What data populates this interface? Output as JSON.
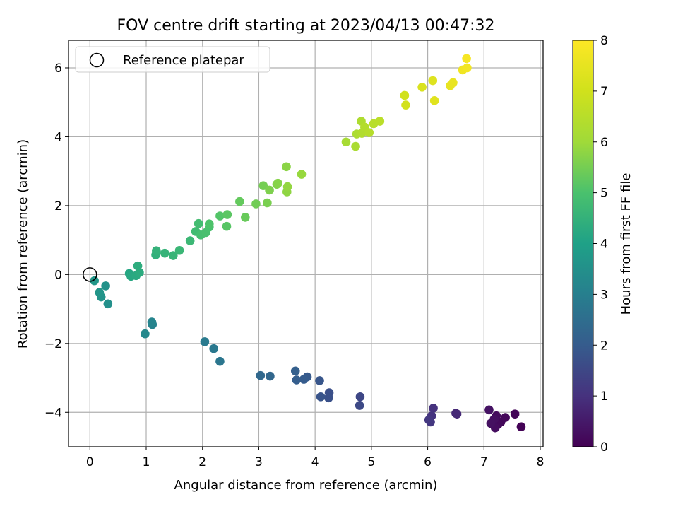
{
  "chart_data": {
    "type": "scatter",
    "title": "FOV centre drift starting at 2023/04/13 00:47:32",
    "xlabel": "Angular distance from reference (arcmin)",
    "ylabel": "Rotation from reference (arcmin)",
    "xlim": [
      -0.38,
      8.05
    ],
    "ylim": [
      -5.0,
      6.8
    ],
    "xticks": [
      0,
      1,
      2,
      3,
      4,
      5,
      6,
      7,
      8
    ],
    "yticks": [
      -4,
      -2,
      0,
      2,
      4,
      6
    ],
    "grid": true,
    "legend": {
      "position": "top-left",
      "entries": [
        "Reference platepar"
      ]
    },
    "reference_point": {
      "x": 0,
      "y": 0
    },
    "colorbar": {
      "label": "Hours from first FF file",
      "range": [
        0,
        8
      ],
      "ticks": [
        0,
        1,
        2,
        3,
        4,
        5,
        6,
        7,
        8
      ],
      "colormap": "viridis"
    },
    "points": [
      {
        "x": 7.66,
        "y": -4.42,
        "c": 0.05
      },
      {
        "x": 7.55,
        "y": -4.05,
        "c": 0.1
      },
      {
        "x": 7.38,
        "y": -4.15,
        "c": 0.12
      },
      {
        "x": 7.3,
        "y": -4.28,
        "c": 0.15
      },
      {
        "x": 7.25,
        "y": -4.35,
        "c": 0.18
      },
      {
        "x": 7.22,
        "y": -4.1,
        "c": 0.2
      },
      {
        "x": 7.2,
        "y": -4.45,
        "c": 0.25
      },
      {
        "x": 7.18,
        "y": -4.2,
        "c": 0.28
      },
      {
        "x": 7.12,
        "y": -4.32,
        "c": 0.32
      },
      {
        "x": 7.09,
        "y": -3.93,
        "c": 0.35
      },
      {
        "x": 6.52,
        "y": -4.05,
        "c": 0.8
      },
      {
        "x": 6.5,
        "y": -4.03,
        "c": 0.82
      },
      {
        "x": 6.1,
        "y": -3.88,
        "c": 1.0
      },
      {
        "x": 6.07,
        "y": -4.1,
        "c": 1.05
      },
      {
        "x": 6.05,
        "y": -4.28,
        "c": 1.1
      },
      {
        "x": 6.02,
        "y": -4.22,
        "c": 1.15
      },
      {
        "x": 4.8,
        "y": -3.55,
        "c": 1.5
      },
      {
        "x": 4.79,
        "y": -3.8,
        "c": 1.55
      },
      {
        "x": 4.25,
        "y": -3.43,
        "c": 1.7
      },
      {
        "x": 4.24,
        "y": -3.58,
        "c": 1.72
      },
      {
        "x": 4.1,
        "y": -3.55,
        "c": 1.8
      },
      {
        "x": 4.08,
        "y": -3.08,
        "c": 1.85
      },
      {
        "x": 3.86,
        "y": -2.97,
        "c": 1.95
      },
      {
        "x": 3.8,
        "y": -3.04,
        "c": 2.0
      },
      {
        "x": 3.67,
        "y": -3.06,
        "c": 2.05
      },
      {
        "x": 3.65,
        "y": -2.8,
        "c": 2.1
      },
      {
        "x": 3.2,
        "y": -2.95,
        "c": 2.3
      },
      {
        "x": 3.03,
        "y": -2.93,
        "c": 2.35
      },
      {
        "x": 2.31,
        "y": -2.52,
        "c": 2.75
      },
      {
        "x": 2.2,
        "y": -2.15,
        "c": 2.8
      },
      {
        "x": 2.04,
        "y": -1.95,
        "c": 2.85
      },
      {
        "x": 1.11,
        "y": -1.45,
        "c": 3.1
      },
      {
        "x": 1.1,
        "y": -1.38,
        "c": 3.15
      },
      {
        "x": 0.98,
        "y": -1.72,
        "c": 3.25
      },
      {
        "x": 0.32,
        "y": -0.85,
        "c": 3.5
      },
      {
        "x": 0.28,
        "y": -0.33,
        "c": 3.55
      },
      {
        "x": 0.2,
        "y": -0.65,
        "c": 3.6
      },
      {
        "x": 0.17,
        "y": -0.52,
        "c": 3.65
      },
      {
        "x": 0.08,
        "y": -0.18,
        "c": 3.7
      },
      {
        "x": 0.7,
        "y": 0.03,
        "c": 4.15
      },
      {
        "x": 0.73,
        "y": -0.05,
        "c": 4.2
      },
      {
        "x": 0.82,
        "y": -0.03,
        "c": 4.25
      },
      {
        "x": 0.88,
        "y": 0.06,
        "c": 4.3
      },
      {
        "x": 0.85,
        "y": 0.25,
        "c": 4.35
      },
      {
        "x": 1.17,
        "y": 0.57,
        "c": 4.45
      },
      {
        "x": 1.18,
        "y": 0.69,
        "c": 4.5
      },
      {
        "x": 1.33,
        "y": 0.62,
        "c": 4.55
      },
      {
        "x": 1.48,
        "y": 0.55,
        "c": 4.6
      },
      {
        "x": 1.59,
        "y": 0.7,
        "c": 4.65
      },
      {
        "x": 1.78,
        "y": 0.98,
        "c": 4.7
      },
      {
        "x": 1.88,
        "y": 1.25,
        "c": 4.8
      },
      {
        "x": 1.93,
        "y": 1.48,
        "c": 4.85
      },
      {
        "x": 1.97,
        "y": 1.15,
        "c": 4.9
      },
      {
        "x": 2.06,
        "y": 1.22,
        "c": 4.95
      },
      {
        "x": 2.12,
        "y": 1.38,
        "c": 5.0
      },
      {
        "x": 2.12,
        "y": 1.47,
        "c": 5.05
      },
      {
        "x": 2.31,
        "y": 1.7,
        "c": 5.1
      },
      {
        "x": 2.43,
        "y": 1.4,
        "c": 5.15
      },
      {
        "x": 2.44,
        "y": 1.74,
        "c": 5.2
      },
      {
        "x": 2.66,
        "y": 2.12,
        "c": 5.3
      },
      {
        "x": 2.76,
        "y": 1.66,
        "c": 5.35
      },
      {
        "x": 2.95,
        "y": 2.05,
        "c": 5.45
      },
      {
        "x": 3.08,
        "y": 2.58,
        "c": 5.5
      },
      {
        "x": 3.15,
        "y": 2.08,
        "c": 5.55
      },
      {
        "x": 3.19,
        "y": 2.45,
        "c": 5.6
      },
      {
        "x": 3.32,
        "y": 2.62,
        "c": 5.65
      },
      {
        "x": 3.34,
        "y": 2.65,
        "c": 5.7
      },
      {
        "x": 3.49,
        "y": 3.13,
        "c": 5.75
      },
      {
        "x": 3.5,
        "y": 2.4,
        "c": 5.8
      },
      {
        "x": 3.51,
        "y": 2.55,
        "c": 5.85
      },
      {
        "x": 3.76,
        "y": 2.91,
        "c": 5.9
      },
      {
        "x": 4.55,
        "y": 3.85,
        "c": 6.15
      },
      {
        "x": 4.72,
        "y": 3.72,
        "c": 6.2
      },
      {
        "x": 4.74,
        "y": 4.08,
        "c": 6.25
      },
      {
        "x": 4.82,
        "y": 4.45,
        "c": 6.3
      },
      {
        "x": 4.83,
        "y": 4.1,
        "c": 6.35
      },
      {
        "x": 4.88,
        "y": 4.28,
        "c": 6.4
      },
      {
        "x": 4.96,
        "y": 4.12,
        "c": 6.45
      },
      {
        "x": 5.04,
        "y": 4.38,
        "c": 6.5
      },
      {
        "x": 5.15,
        "y": 4.45,
        "c": 6.55
      },
      {
        "x": 5.59,
        "y": 5.2,
        "c": 7.0
      },
      {
        "x": 5.61,
        "y": 4.92,
        "c": 7.05
      },
      {
        "x": 5.9,
        "y": 5.44,
        "c": 7.2
      },
      {
        "x": 6.09,
        "y": 5.63,
        "c": 7.3
      },
      {
        "x": 6.12,
        "y": 5.05,
        "c": 7.35
      },
      {
        "x": 6.4,
        "y": 5.48,
        "c": 7.5
      },
      {
        "x": 6.45,
        "y": 5.57,
        "c": 7.55
      },
      {
        "x": 6.62,
        "y": 5.94,
        "c": 7.7
      },
      {
        "x": 6.7,
        "y": 6.0,
        "c": 7.75
      },
      {
        "x": 6.69,
        "y": 6.27,
        "c": 7.85
      }
    ]
  }
}
